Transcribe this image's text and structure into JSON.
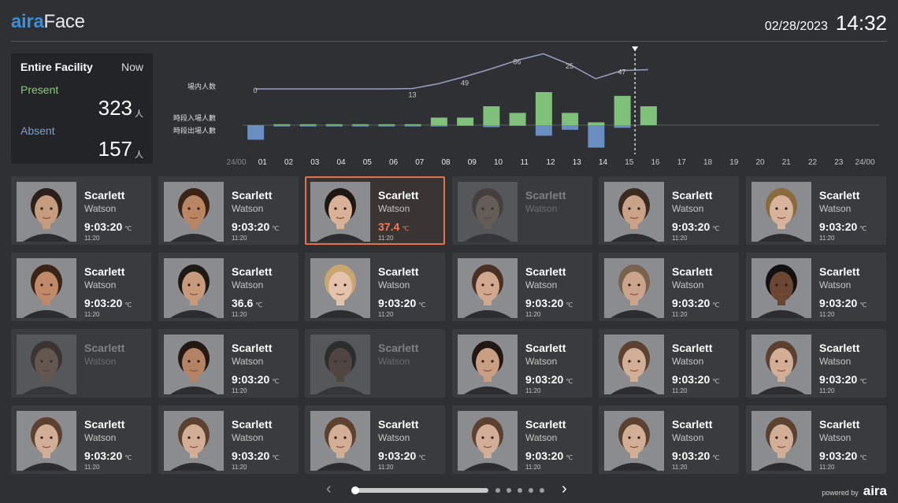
{
  "header": {
    "logo_part1": "aira",
    "logo_part2": "Face",
    "date": "02/28/2023",
    "time": "14:32"
  },
  "stats": {
    "title": "Entire Facility",
    "now_label": "Now",
    "present_label": "Present",
    "present_value": "323",
    "absent_label": "Absent",
    "absent_value": "157",
    "unit": "人"
  },
  "chart_data": {
    "type": "bar",
    "hours": [
      "24/00",
      "01",
      "02",
      "03",
      "04",
      "05",
      "06",
      "07",
      "08",
      "09",
      "10",
      "11",
      "12",
      "13",
      "14",
      "15",
      "16",
      "17",
      "18",
      "19",
      "20",
      "21",
      "22",
      "23",
      "24/00"
    ],
    "row_labels": {
      "occupancy": "場内人数",
      "entries": "時段入場人數",
      "exits": "時段出場人數"
    },
    "occupancy_line": [
      0,
      0,
      0,
      0,
      0,
      0,
      1,
      13,
      30,
      49,
      70,
      86,
      60,
      25,
      45,
      47
    ],
    "occupancy_labels": [
      {
        "hour_index": 0,
        "text": "0"
      },
      {
        "hour_index": 6,
        "text": "13"
      },
      {
        "hour_index": 8,
        "text": "49"
      },
      {
        "hour_index": 10,
        "text": "86"
      },
      {
        "hour_index": 12,
        "text": "25"
      },
      {
        "hour_index": 14,
        "text": "47"
      }
    ],
    "entries": [
      0,
      1,
      1,
      1,
      1,
      1,
      1,
      8,
      8,
      20,
      13,
      35,
      13,
      3,
      31,
      20
    ],
    "exits": [
      22,
      2,
      2,
      2,
      2,
      2,
      2,
      2,
      1,
      3,
      1,
      16,
      7,
      34,
      4,
      0
    ],
    "current_hour_index": 14.5,
    "colors": {
      "entries": "#7fc17a",
      "exits": "#6a8ec1",
      "line": "#9aa0c4"
    }
  },
  "cards": [
    {
      "first": "Scarlett",
      "last": "Watson",
      "temp": "9:03:20",
      "unit": "℃",
      "time": "11:20",
      "state": "normal",
      "skin": "#c79b7d",
      "hair": "#2a1f1a"
    },
    {
      "first": "Scarlett",
      "last": "Watson",
      "temp": "9:03:20",
      "unit": "℃",
      "time": "11:20",
      "state": "normal",
      "skin": "#b98563",
      "hair": "#3b2416"
    },
    {
      "first": "Scarlett",
      "last": "Watson",
      "temp": "37.4",
      "unit": "℃",
      "time": "11:20",
      "state": "alert",
      "skin": "#d8b196",
      "hair": "#1d1714"
    },
    {
      "first": "Scarlett",
      "last": "Watson",
      "temp": "",
      "unit": "",
      "time": "",
      "state": "dim",
      "skin": "#b49a86",
      "hair": "#5a4a3c"
    },
    {
      "first": "Scarlett",
      "last": "Watson",
      "temp": "9:03:20",
      "unit": "℃",
      "time": "11:20",
      "state": "normal",
      "skin": "#caa287",
      "hair": "#3a2c22"
    },
    {
      "first": "Scarlett",
      "last": "Watson",
      "temp": "9:03:20",
      "unit": "℃",
      "time": "11:20",
      "state": "normal",
      "skin": "#d6b39a",
      "hair": "#8b6a3d"
    },
    {
      "first": "Scarlett",
      "last": "Watson",
      "temp": "9:03:20",
      "unit": "℃",
      "time": "11:20",
      "state": "normal",
      "skin": "#c08a6a",
      "hair": "#3a2418"
    },
    {
      "first": "Scarlett",
      "last": "Watson",
      "temp": "36.6",
      "unit": "℃",
      "time": "11:20",
      "state": "normal",
      "skin": "#c89a7c",
      "hair": "#1f1915"
    },
    {
      "first": "Scarlett",
      "last": "Watson",
      "temp": "9:03:20",
      "unit": "℃",
      "time": "11:20",
      "state": "normal",
      "skin": "#e3c3ab",
      "hair": "#c9a570"
    },
    {
      "first": "Scarlett",
      "last": "Watson",
      "temp": "9:03:20",
      "unit": "℃",
      "time": "11:20",
      "state": "normal",
      "skin": "#d1a88d",
      "hair": "#4a3022"
    },
    {
      "first": "Scarlett",
      "last": "Watson",
      "temp": "9:03:20",
      "unit": "℃",
      "time": "11:20",
      "state": "normal",
      "skin": "#caa58c",
      "hair": "#7a634e"
    },
    {
      "first": "Scarlett",
      "last": "Watson",
      "temp": "9:03:20",
      "unit": "℃",
      "time": "11:20",
      "state": "normal",
      "skin": "#6b4632",
      "hair": "#121010"
    },
    {
      "first": "Scarlett",
      "last": "Watson",
      "temp": "",
      "unit": "",
      "time": "",
      "state": "dim",
      "skin": "#b08c74",
      "hair": "#3a2a20"
    },
    {
      "first": "Scarlett",
      "last": "Watson",
      "temp": "9:03:20",
      "unit": "℃",
      "time": "11:20",
      "state": "normal",
      "skin": "#b48365",
      "hair": "#241813"
    },
    {
      "first": "Scarlett",
      "last": "Watson",
      "temp": "",
      "unit": "",
      "time": "",
      "state": "dim",
      "skin": "#7a5848",
      "hair": "#1a1412"
    },
    {
      "first": "Scarlett",
      "last": "Watson",
      "temp": "9:03:20",
      "unit": "℃",
      "time": "11:20",
      "state": "normal",
      "skin": "#c99e82",
      "hair": "#201612"
    },
    {
      "first": "Scarlett",
      "last": "Watson",
      "temp": "9:03:20",
      "unit": "℃",
      "time": "11:20",
      "state": "normal",
      "skin": "#d3ae96",
      "hair": "#5c4030"
    },
    {
      "first": "Scarlett",
      "last": "Watson",
      "temp": "9:03:20",
      "unit": "℃",
      "time": "11:20",
      "state": "normal",
      "skin": "#d3ae96",
      "hair": "#5c4030"
    },
    {
      "first": "Scarlett",
      "last": "Watson",
      "temp": "9:03:20",
      "unit": "℃",
      "time": "11:20",
      "state": "normal",
      "skin": "#d3ae96",
      "hair": "#5c4030"
    },
    {
      "first": "Scarlett",
      "last": "Watson",
      "temp": "9:03:20",
      "unit": "℃",
      "time": "11:20",
      "state": "normal",
      "skin": "#d3ae96",
      "hair": "#5c4030"
    },
    {
      "first": "Scarlett",
      "last": "Watson",
      "temp": "9:03:20",
      "unit": "℃",
      "time": "11:20",
      "state": "normal",
      "skin": "#d3ae96",
      "hair": "#5c4030"
    },
    {
      "first": "Scarlett",
      "last": "Watson",
      "temp": "9:03:20",
      "unit": "℃",
      "time": "11:20",
      "state": "normal",
      "skin": "#d3ae96",
      "hair": "#5c4030"
    },
    {
      "first": "Scarlett",
      "last": "Watson",
      "temp": "9:03:20",
      "unit": "℃",
      "time": "11:20",
      "state": "normal",
      "skin": "#d3ae96",
      "hair": "#5c4030"
    },
    {
      "first": "Scarlett",
      "last": "Watson",
      "temp": "9:03:20",
      "unit": "℃",
      "time": "11:20",
      "state": "normal",
      "skin": "#d3ae96",
      "hair": "#5c4030"
    }
  ],
  "pager": {
    "prev_icon": "chevron-left-icon",
    "next_icon": "chevron-right-icon",
    "prev_glyph": "‹",
    "next_glyph": "›",
    "page_count": 6,
    "current_page": 1
  },
  "footer": {
    "powered_text": "powered by",
    "brand": "aira"
  }
}
